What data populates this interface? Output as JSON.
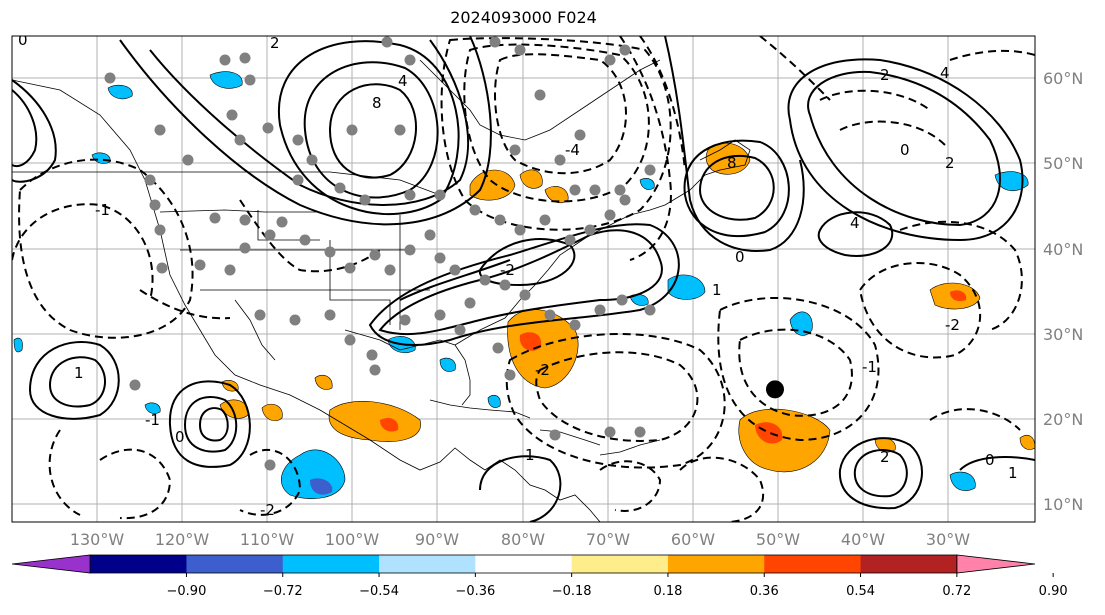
{
  "title": "2024093000 F024",
  "lon_labels": [
    "130°W",
    "120°W",
    "110°W",
    "100°W",
    "90°W",
    "80°W",
    "70°W",
    "60°W",
    "50°W",
    "40°W",
    "30°W"
  ],
  "lat_labels": [
    "60°N",
    "50°N",
    "40°N",
    "30°N",
    "20°N",
    "10°N"
  ],
  "colorbar": {
    "ticks": [
      "−0.90",
      "−0.72",
      "−0.54",
      "−0.36",
      "−0.18",
      "0.18",
      "0.36",
      "0.54",
      "0.72",
      "0.90"
    ],
    "colors": [
      "#9932cc",
      "#00008b",
      "#3c5fcd",
      "#00bfff",
      "#b0e2ff",
      "#ffffff",
      "#ffec8b",
      "#ffa500",
      "#ff4500",
      "#b22222",
      "#ff82ab"
    ]
  },
  "contour_labels": [
    "8",
    "4",
    "2",
    "0",
    "-4",
    "-2",
    "1",
    "-1",
    "8",
    "4",
    "2",
    "0",
    "2",
    "4",
    "0",
    "-2",
    "1",
    "-1",
    "0",
    "2",
    "-1",
    "-2",
    "1",
    "0",
    "-2",
    "1"
  ],
  "station_marker": {
    "lat": 23.5,
    "lon": -50.5
  }
}
